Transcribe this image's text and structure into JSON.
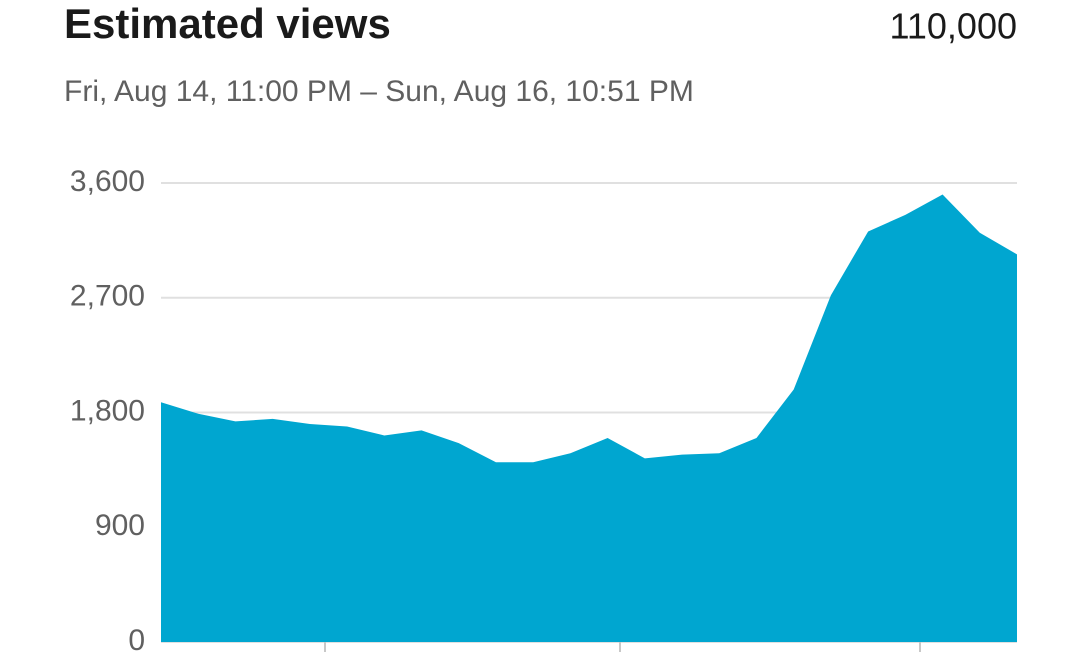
{
  "chart_data": {
    "type": "area",
    "title": "Estimated views",
    "subtitle": "Fri, Aug 14, 11:00 PM – Sun, Aug 16, 10:51 PM",
    "total": "110,000",
    "color": "#00a6d0",
    "grid": true,
    "categories": [
      null,
      null,
      null,
      null,
      null,
      null,
      null,
      null,
      null,
      null,
      null,
      null,
      null,
      null,
      null,
      null,
      null,
      null,
      null,
      null,
      null,
      null,
      null,
      null
    ],
    "values": [
      1880,
      1790,
      1730,
      1750,
      1710,
      1690,
      1620,
      1660,
      1560,
      1410,
      1410,
      1480,
      1600,
      1440,
      1470,
      1480,
      1600,
      1980,
      2720,
      3220,
      3350,
      3510,
      3210,
      3040
    ],
    "ylim": [
      0,
      3600
    ],
    "yticks": [
      0,
      900,
      {
        "value": 1800,
        "label": "1,800"
      },
      {
        "value": 2700,
        "label": "2,700"
      },
      {
        "value": 3600,
        "label": "3,600"
      }
    ]
  }
}
